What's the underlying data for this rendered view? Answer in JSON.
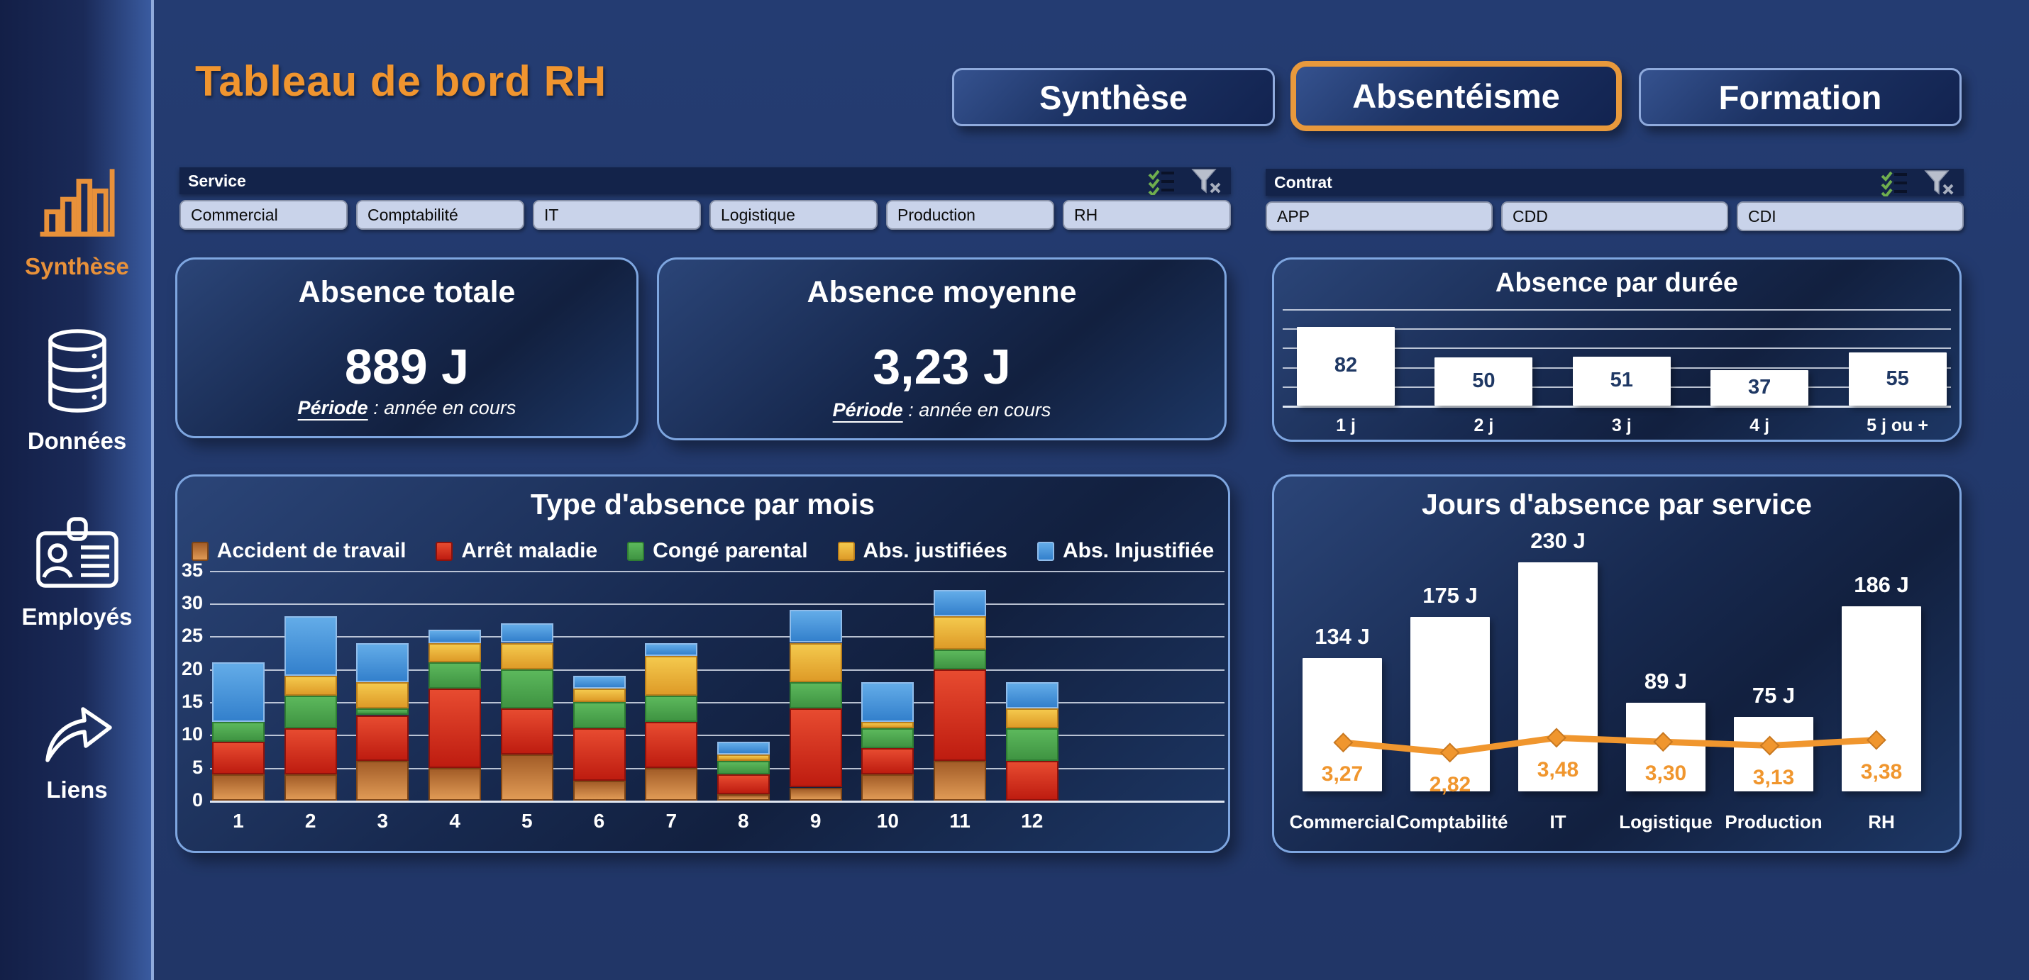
{
  "app": {
    "title": "Tableau de bord RH"
  },
  "tabs": [
    {
      "label": "Synthèse",
      "active": false
    },
    {
      "label": "Absentéisme",
      "active": true
    },
    {
      "label": "Formation",
      "active": false
    }
  ],
  "sidebar": {
    "items": [
      {
        "label": "Synthèse",
        "icon": "bar-chart-icon",
        "active": true
      },
      {
        "label": "Données",
        "icon": "database-icon",
        "active": false
      },
      {
        "label": "Employés",
        "icon": "id-card-icon",
        "active": false
      },
      {
        "label": "Liens",
        "icon": "link-arrow-icon",
        "active": false
      }
    ]
  },
  "slicers": [
    {
      "title": "Service",
      "buttons": [
        "Commercial",
        "Comptabilité",
        "IT",
        "Logistique",
        "Production",
        "RH"
      ]
    },
    {
      "title": "Contrat",
      "buttons": [
        "APP",
        "CDD",
        "CDI"
      ]
    }
  ],
  "kpis": [
    {
      "title": "Absence totale",
      "value": "889 J",
      "period_label": "Période",
      "period_rest": " : année en cours"
    },
    {
      "title": "Absence moyenne",
      "value": "3,23 J",
      "period_label": "Période",
      "period_rest": " : année en cours"
    }
  ],
  "colors": {
    "accent_orange": "#F0952F",
    "card_border": "#7EA6E0",
    "active_tab_border": "#E8993C",
    "bar_white": "#FFFFFF",
    "value_navy": "#1F3864"
  },
  "chart_data": [
    {
      "id": "absence_par_duree",
      "type": "bar",
      "title": "Absence par durée",
      "categories": [
        "1 j",
        "2 j",
        "3 j",
        "4 j",
        "5 j ou +"
      ],
      "values": [
        82,
        50,
        51,
        37,
        55
      ],
      "ylim": [
        0,
        100
      ],
      "gridline_step": 20,
      "grid": true,
      "bar_color": "#FFFFFF",
      "label_color": "#1F3864"
    },
    {
      "id": "type_absence_par_mois",
      "type": "stacked-bar",
      "title": "Type d'absence par mois",
      "categories": [
        "1",
        "2",
        "3",
        "4",
        "5",
        "6",
        "7",
        "8",
        "9",
        "10",
        "11",
        "12"
      ],
      "ylim": [
        0,
        35
      ],
      "ytick_step": 5,
      "grid": true,
      "legend_position": "top",
      "series": [
        {
          "name": "Accident de travail",
          "c1": "#A35D28",
          "c2": "#E09A55",
          "border": "#7E4516",
          "values": [
            4,
            4,
            6,
            5,
            7,
            3,
            5,
            1,
            2,
            4,
            6,
            0
          ]
        },
        {
          "name": "Arrêt maladie",
          "c1": "#E74B30",
          "c2": "#BE1C10",
          "border": "#8E120C",
          "values": [
            5,
            7,
            7,
            12,
            7,
            8,
            7,
            3,
            12,
            4,
            14,
            6
          ]
        },
        {
          "name": "Congé parental",
          "c1": "#5CB85C",
          "c2": "#3F9442",
          "border": "#2F7D33",
          "values": [
            3,
            5,
            1,
            4,
            6,
            4,
            4,
            2,
            4,
            3,
            3,
            5
          ]
        },
        {
          "name": "Abs. justifiées",
          "c1": "#F4C94D",
          "c2": "#DE9B28",
          "border": "#B97E1C",
          "values": [
            0,
            3,
            4,
            3,
            4,
            2,
            6,
            1,
            6,
            1,
            5,
            3
          ]
        },
        {
          "name": "Abs. Injustifiée",
          "c1": "#63ACE8",
          "c2": "#3380CC",
          "border": "#8FBCEA",
          "values": [
            9,
            9,
            6,
            2,
            3,
            2,
            2,
            2,
            5,
            6,
            4,
            4
          ]
        }
      ]
    },
    {
      "id": "jours_absence_par_service",
      "type": "bar+line",
      "title": "Jours d'absence par service",
      "categories": [
        "Commercial",
        "Comptabilité",
        "IT",
        "Logistique",
        "Production",
        "RH"
      ],
      "bar_values": [
        134,
        175,
        230,
        89,
        75,
        186
      ],
      "bar_labels": [
        "134 J",
        "175 J",
        "230 J",
        "89 J",
        "75 J",
        "186 J"
      ],
      "line_values": [
        3.27,
        2.82,
        3.48,
        3.3,
        3.13,
        3.38
      ],
      "line_labels": [
        "3,27",
        "2,82",
        "3,48",
        "3,30",
        "3,13",
        "3,38"
      ],
      "bar_color": "#FFFFFF",
      "line_color": "#F0962E",
      "line_marker": "diamond"
    }
  ]
}
